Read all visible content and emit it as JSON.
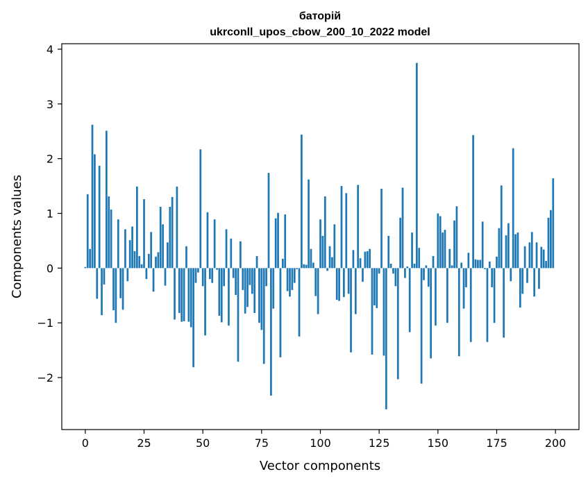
{
  "chart_data": {
    "type": "bar",
    "title": "баторій",
    "subtitle": "ukrconll_upos_cbow_200_10_2022 model",
    "xlabel": "Vector components",
    "ylabel": "Components values",
    "xlim": [
      -10,
      210
    ],
    "ylim": [
      -2.95,
      4.1
    ],
    "xticks": [
      0,
      25,
      50,
      75,
      100,
      125,
      150,
      175,
      200
    ],
    "yticks": [
      -2,
      -1,
      0,
      1,
      2,
      3,
      4
    ],
    "xtick_labels": [
      "0",
      "25",
      "50",
      "75",
      "100",
      "125",
      "150",
      "175",
      "200"
    ],
    "ytick_labels": [
      "−2",
      "−1",
      "0",
      "1",
      "2",
      "3",
      "4"
    ],
    "grid": false,
    "bar_color": "#1f77b4",
    "values": [
      0.02,
      1.35,
      0.35,
      2.62,
      2.08,
      -0.56,
      1.87,
      -0.86,
      -0.3,
      2.51,
      1.31,
      1.07,
      -0.77,
      -1.0,
      0.89,
      -0.55,
      -0.76,
      0.71,
      -0.24,
      0.51,
      0.76,
      0.31,
      1.49,
      0.22,
      0.07,
      1.26,
      -0.2,
      0.26,
      0.66,
      -0.43,
      0.21,
      0.29,
      1.12,
      0.8,
      -0.32,
      0.47,
      1.12,
      1.3,
      -0.94,
      1.49,
      -0.82,
      -0.98,
      -0.97,
      0.4,
      -0.98,
      -1.08,
      -1.81,
      -0.27,
      -0.08,
      2.17,
      -0.33,
      -1.23,
      1.02,
      -0.2,
      -0.27,
      0.89,
      -0.03,
      -0.87,
      -0.99,
      -0.33,
      0.71,
      -1.05,
      0.54,
      -0.18,
      -0.49,
      -1.71,
      0.49,
      -0.4,
      -0.83,
      -0.71,
      -0.31,
      -0.47,
      -0.82,
      0.22,
      -1.0,
      -1.13,
      -1.75,
      -0.33,
      1.74,
      -2.33,
      -0.74,
      0.91,
      1.01,
      -1.63,
      0.17,
      0.98,
      -0.42,
      -0.52,
      -0.4,
      -0.27,
      -0.02,
      -1.25,
      2.44,
      0.07,
      0.06,
      1.62,
      0.35,
      0.1,
      -0.51,
      -0.84,
      0.89,
      0.59,
      1.31,
      -0.05,
      0.4,
      0.2,
      0.8,
      -0.58,
      -0.6,
      1.5,
      -0.53,
      1.37,
      -0.47,
      -1.54,
      0.33,
      -0.84,
      1.52,
      0.18,
      -0.25,
      0.3,
      0.31,
      0.35,
      -1.58,
      -0.68,
      -0.73,
      -0.1,
      1.45,
      -1.6,
      -2.58,
      0.59,
      0.08,
      -0.1,
      -0.33,
      -2.03,
      0.92,
      1.47,
      -0.18,
      0.03,
      -1.17,
      0.65,
      0.08,
      3.75,
      0.37,
      -2.11,
      -0.22,
      0.05,
      -0.34,
      -1.65,
      0.22,
      -1.05,
      1.0,
      0.95,
      0.65,
      0.7,
      -1.0,
      0.35,
      0.05,
      0.87,
      1.13,
      -1.61,
      0.1,
      -0.74,
      -0.35,
      0.28,
      -1.35,
      2.43,
      0.16,
      0.15,
      0.15,
      0.85,
      -0.02,
      -1.35,
      0.12,
      -0.35,
      -1.0,
      0.21,
      0.73,
      1.51,
      -1.27,
      0.6,
      0.82,
      -0.24,
      2.19,
      0.62,
      0.65,
      -0.72,
      -0.47,
      0.4,
      -0.27,
      0.47,
      0.66,
      -0.52,
      0.47,
      -0.38,
      0.39,
      0.34,
      0.13,
      0.92,
      1.06,
      1.64
    ]
  }
}
